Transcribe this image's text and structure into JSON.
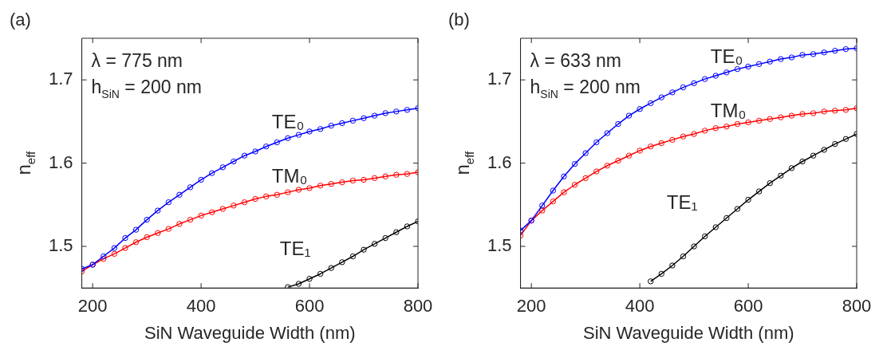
{
  "chart_data": [
    {
      "type": "line",
      "title": "(a)",
      "xlabel": "SiN Waveguide Width (nm)",
      "ylabel": "n$_{eff}$",
      "xlim": [
        180,
        800
      ],
      "ylim": [
        1.45,
        1.75
      ],
      "xticks": [
        200,
        400,
        600,
        800
      ],
      "yticks": [
        1.5,
        1.6,
        1.7
      ],
      "grid": false,
      "legend": false,
      "marker": "circle",
      "line_style": "solid",
      "annotations": [
        "λ = 775 nm",
        "h$_{SiN}$ = 200 nm"
      ],
      "x": [
        180,
        200,
        220,
        240,
        260,
        280,
        300,
        320,
        340,
        360,
        380,
        400,
        420,
        440,
        460,
        480,
        500,
        520,
        540,
        560,
        580,
        600,
        620,
        640,
        660,
        680,
        700,
        720,
        740,
        760,
        780,
        800
      ],
      "series": [
        {
          "name": "TE₀",
          "color": "#0000ff",
          "values": [
            1.473,
            1.478,
            1.488,
            1.498,
            1.51,
            1.52,
            1.532,
            1.543,
            1.553,
            1.562,
            1.571,
            1.58,
            1.588,
            1.595,
            1.602,
            1.609,
            1.614,
            1.62,
            1.625,
            1.63,
            1.634,
            1.638,
            1.641,
            1.645,
            1.648,
            1.651,
            1.654,
            1.657,
            1.66,
            1.662,
            1.664,
            1.666
          ]
        },
        {
          "name": "TM₀",
          "color": "#ff0000",
          "values": [
            1.47,
            1.478,
            1.485,
            1.491,
            1.498,
            1.505,
            1.511,
            1.516,
            1.521,
            1.527,
            1.532,
            1.537,
            1.541,
            1.545,
            1.549,
            1.553,
            1.557,
            1.56,
            1.562,
            1.565,
            1.568,
            1.57,
            1.573,
            1.575,
            1.577,
            1.579,
            1.58,
            1.582,
            1.584,
            1.586,
            1.587,
            1.589
          ]
        },
        {
          "name": "TE₁",
          "color": "#000000",
          "x": [
            560,
            580,
            600,
            620,
            640,
            660,
            680,
            700,
            720,
            740,
            760,
            780,
            800
          ],
          "values": [
            1.451,
            1.455,
            1.461,
            1.467,
            1.474,
            1.481,
            1.488,
            1.496,
            1.503,
            1.51,
            1.517,
            1.524,
            1.53
          ]
        }
      ]
    },
    {
      "type": "line",
      "title": "(b)",
      "xlabel": "SiN Waveguide Width (nm)",
      "ylabel": "n$_{eff}$",
      "xlim": [
        180,
        800
      ],
      "ylim": [
        1.45,
        1.75
      ],
      "xticks": [
        200,
        400,
        600,
        800
      ],
      "yticks": [
        1.5,
        1.6,
        1.7
      ],
      "grid": false,
      "legend": false,
      "marker": "circle",
      "line_style": "solid",
      "annotations": [
        "λ = 633 nm",
        "h$_{SiN}$ = 200 nm"
      ],
      "x": [
        180,
        200,
        220,
        240,
        260,
        280,
        300,
        320,
        340,
        360,
        380,
        400,
        420,
        440,
        460,
        480,
        500,
        520,
        540,
        560,
        580,
        600,
        620,
        640,
        660,
        680,
        700,
        720,
        740,
        760,
        780,
        800
      ],
      "series": [
        {
          "name": "TE₀",
          "color": "#0000ff",
          "values": [
            1.519,
            1.531,
            1.549,
            1.567,
            1.584,
            1.599,
            1.612,
            1.625,
            1.636,
            1.647,
            1.657,
            1.665,
            1.672,
            1.679,
            1.685,
            1.691,
            1.696,
            1.701,
            1.705,
            1.709,
            1.713,
            1.716,
            1.719,
            1.722,
            1.725,
            1.727,
            1.73,
            1.731,
            1.733,
            1.735,
            1.737,
            1.738
          ]
        },
        {
          "name": "TM₀",
          "color": "#ff0000",
          "values": [
            1.513,
            1.531,
            1.543,
            1.554,
            1.565,
            1.574,
            1.582,
            1.59,
            1.597,
            1.603,
            1.609,
            1.615,
            1.62,
            1.624,
            1.628,
            1.632,
            1.635,
            1.639,
            1.642,
            1.644,
            1.647,
            1.649,
            1.651,
            1.653,
            1.655,
            1.657,
            1.659,
            1.66,
            1.662,
            1.663,
            1.664,
            1.666
          ]
        },
        {
          "name": "TE₁",
          "color": "#000000",
          "x": [
            420,
            440,
            460,
            480,
            500,
            520,
            540,
            560,
            580,
            600,
            620,
            640,
            660,
            680,
            700,
            720,
            740,
            760,
            780,
            800
          ],
          "values": [
            1.458,
            1.467,
            1.477,
            1.488,
            1.5,
            1.512,
            1.523,
            1.534,
            1.545,
            1.556,
            1.566,
            1.576,
            1.585,
            1.594,
            1.602,
            1.609,
            1.616,
            1.623,
            1.629,
            1.635
          ]
        }
      ]
    }
  ]
}
